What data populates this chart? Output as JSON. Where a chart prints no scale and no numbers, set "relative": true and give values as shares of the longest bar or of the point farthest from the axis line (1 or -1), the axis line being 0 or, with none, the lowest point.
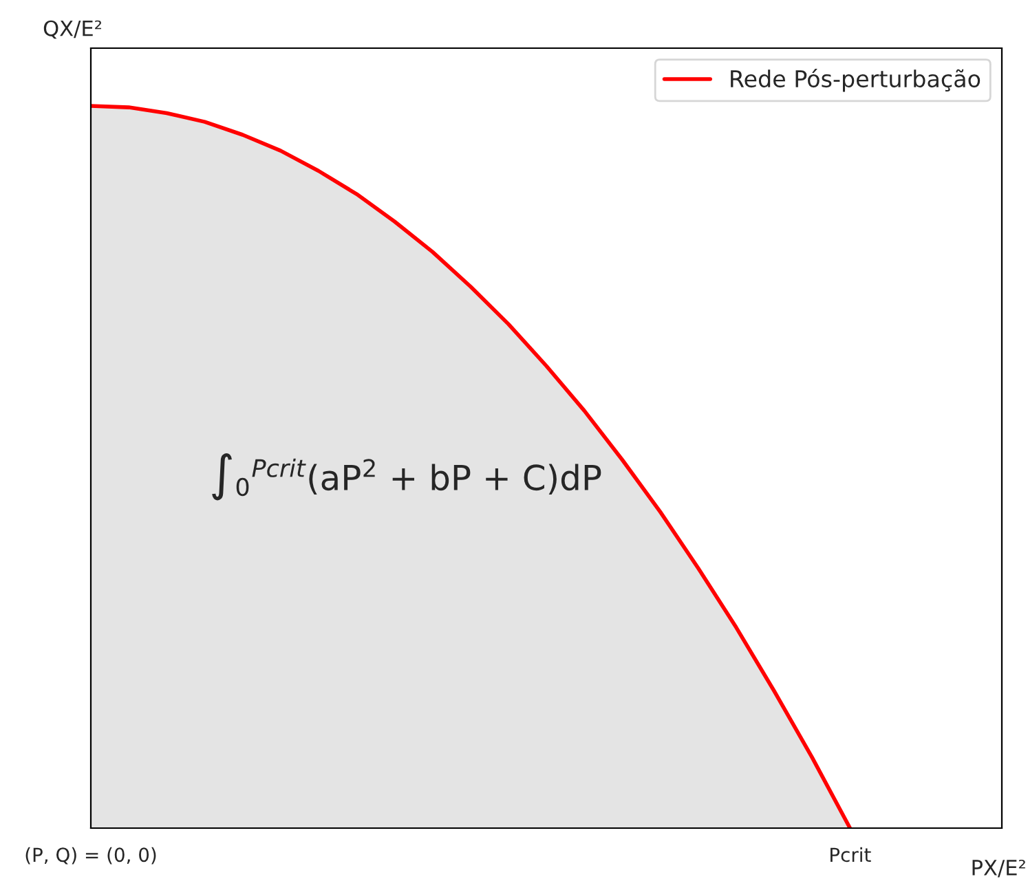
{
  "chart_data": {
    "type": "area",
    "relative": true,
    "categories": [
      "(P, Q) = (0, 0)",
      null,
      null,
      null,
      null,
      null,
      null,
      null,
      null,
      null,
      null,
      null,
      null,
      null,
      null,
      null,
      null,
      null,
      null,
      null,
      "Pcrit",
      null,
      null,
      null,
      null
    ],
    "xlabel": "PX/E²",
    "ylabel": "QX/E²",
    "series": [
      {
        "name": "Rede Pós-perturbação",
        "color": "#ff0000",
        "values": [
          1,
          0.998,
          0.99,
          0.978,
          0.96,
          0.938,
          0.91,
          0.878,
          0.84,
          0.798,
          0.75,
          0.698,
          0.64,
          0.578,
          0.51,
          0.438,
          0.36,
          0.278,
          0.19,
          0.098,
          0,
          null,
          null,
          null,
          null
        ]
      }
    ],
    "annotations": [
      "∫$_{0}$$^{Pcrit}$(aP$^{2}$ + bP + C)dP"
    ],
    "legend": "top right",
    "grid": false
  }
}
